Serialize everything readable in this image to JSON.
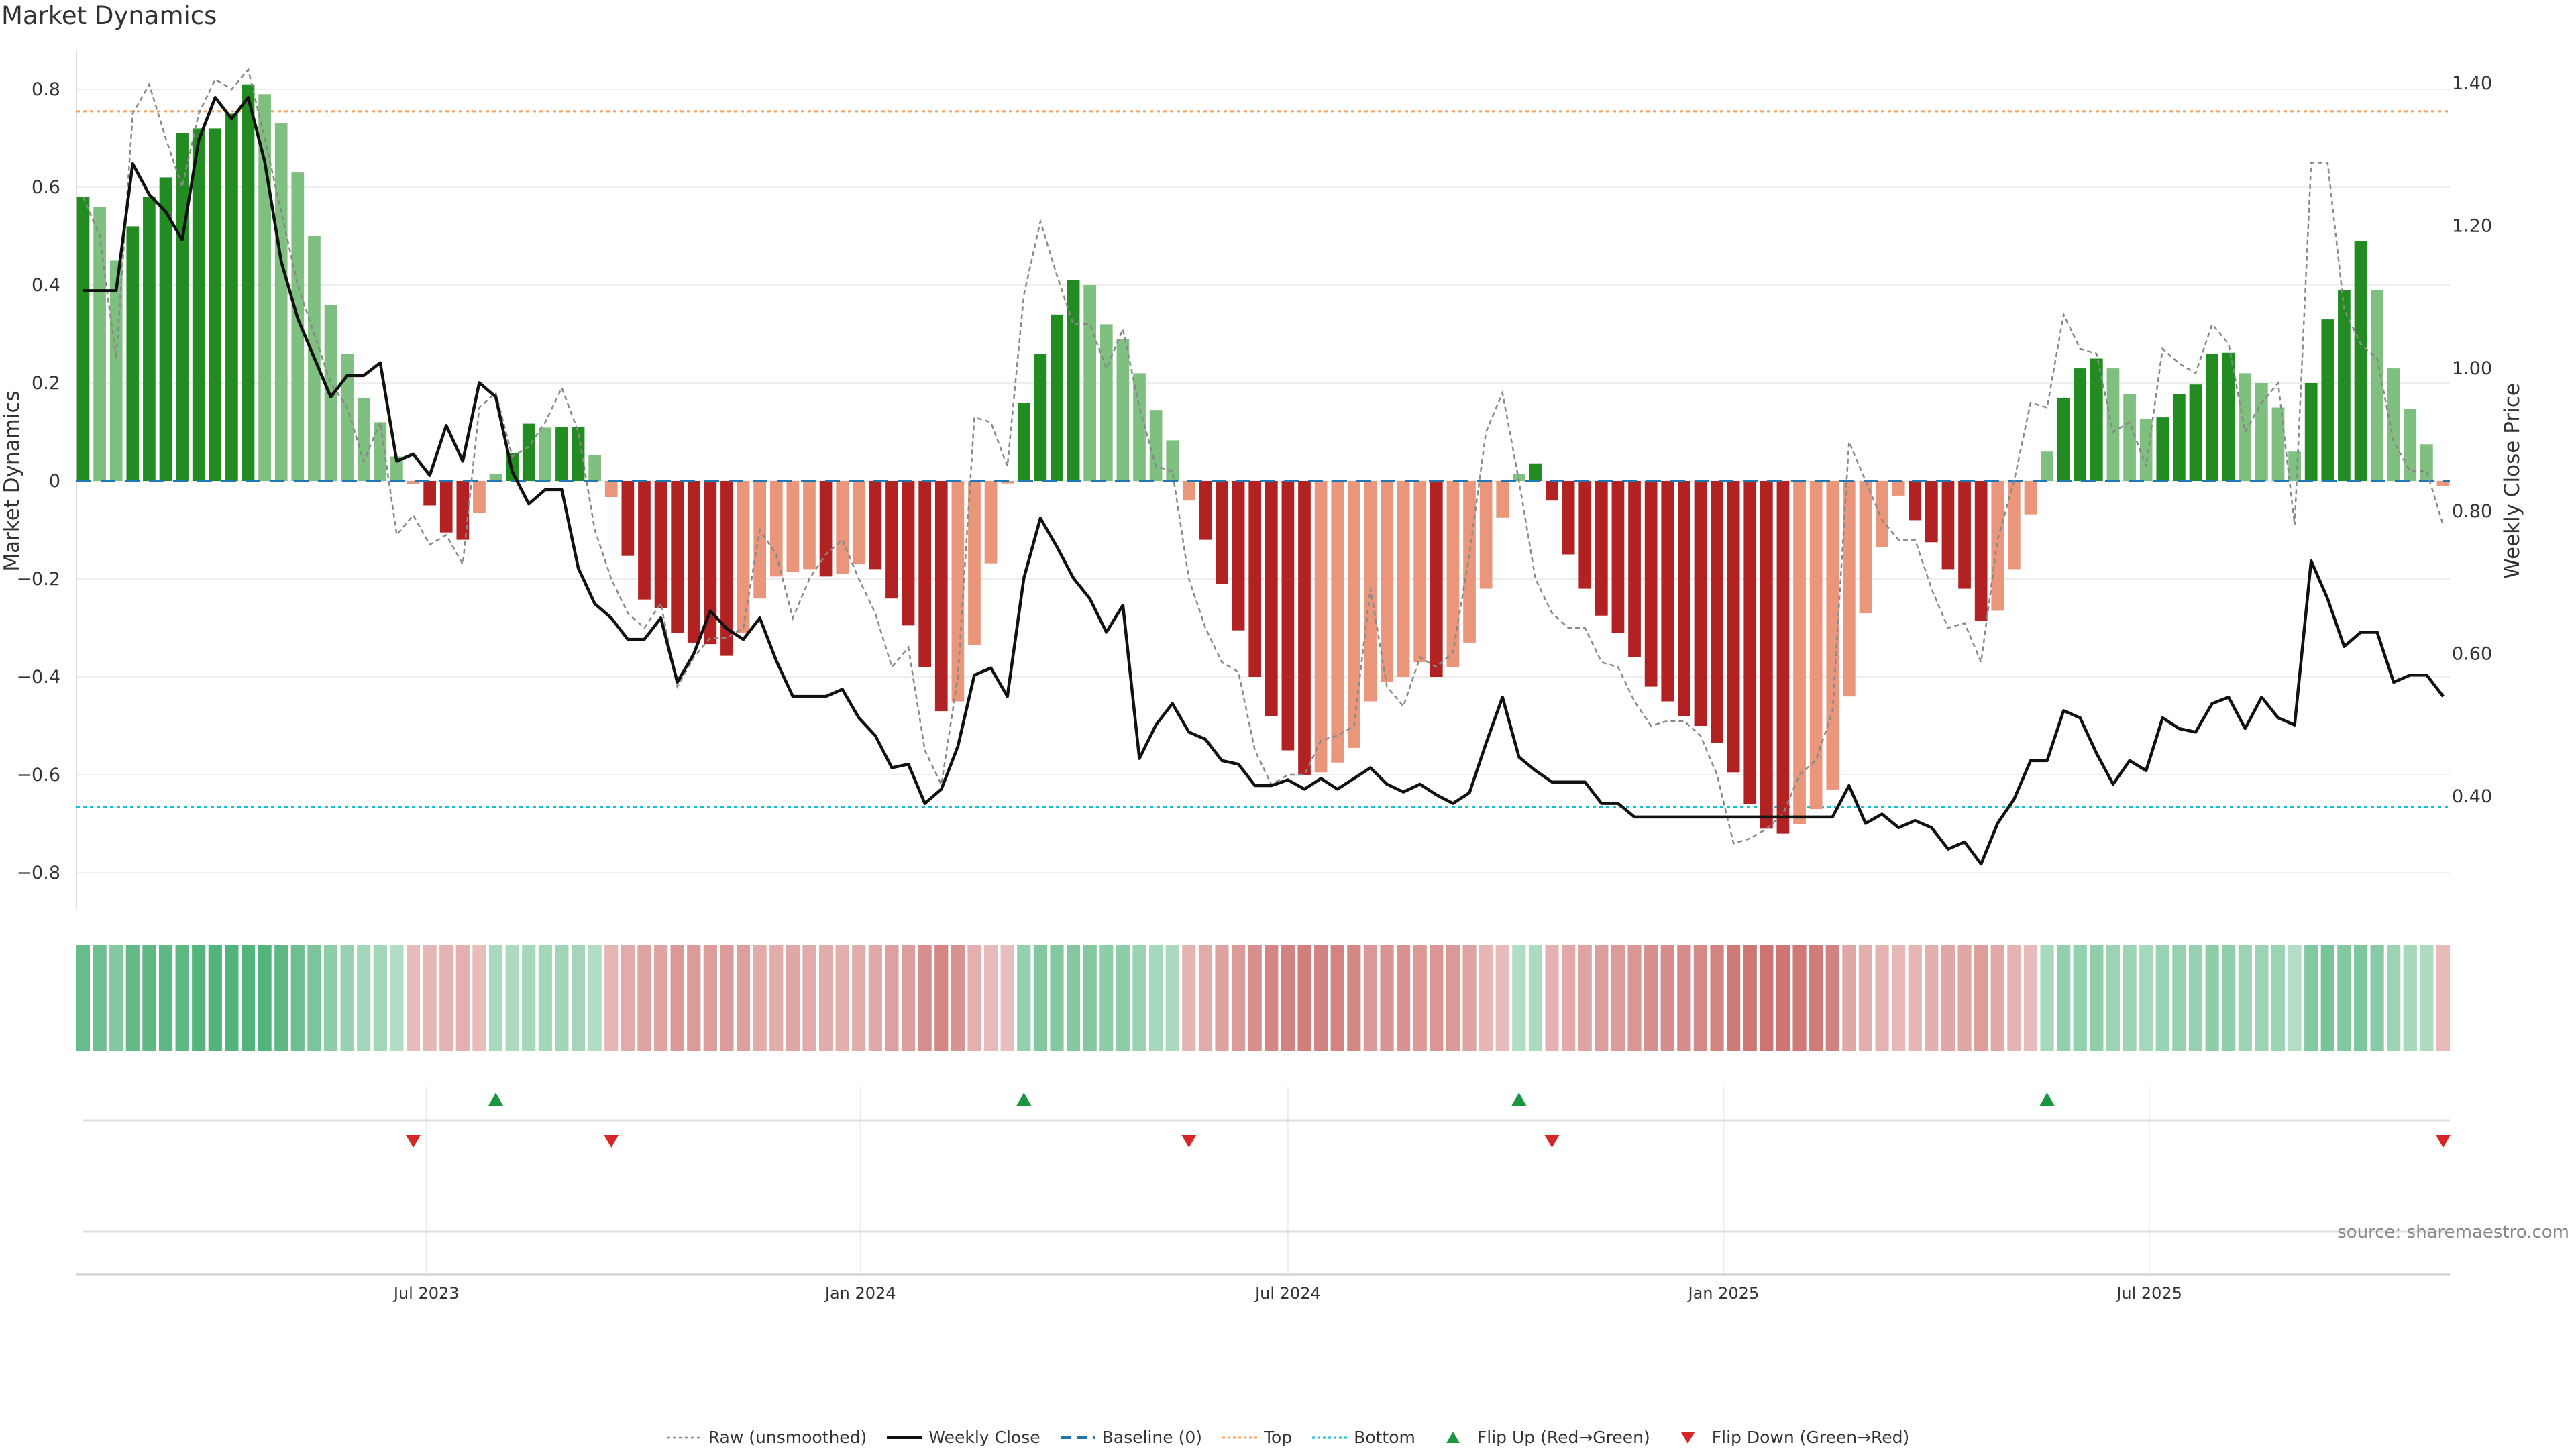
{
  "title": "Market Dynamics",
  "source": "source: sharemaestro.com",
  "colors": {
    "bar_up_strong": "#228b22",
    "bar_up_weak": "#7fbf7f",
    "bar_down_strong": "#b22222",
    "bar_down_weak": "#e9967a",
    "close": "#111111",
    "raw": "#888888",
    "baseline": "#1f77b4",
    "top": "#f4a460",
    "bottom": "#17becf",
    "flip_up": "#1a9641",
    "flip_down": "#d62728",
    "strip_green": "#2ca25f",
    "strip_red": "#c0504d"
  },
  "legend": [
    {
      "key": "raw",
      "label": "Raw (unsmoothed)"
    },
    {
      "key": "close",
      "label": "Weekly Close"
    },
    {
      "key": "baseline",
      "label": "Baseline (0)"
    },
    {
      "key": "top",
      "label": "Top"
    },
    {
      "key": "bottom",
      "label": "Bottom"
    },
    {
      "key": "flip_up",
      "label": "Flip Up (Red→Green)"
    },
    {
      "key": "flip_down",
      "label": "Flip Down (Green→Red)"
    }
  ],
  "chart_data": {
    "type": "bar",
    "title": "Market Dynamics",
    "ylabel": "Market Dynamics",
    "y2label": "Weekly Close Price",
    "ylim": [
      -0.87,
      0.87
    ],
    "y2lim": [
      0.27,
      1.45
    ],
    "yticks": [
      "0.8",
      "0.6",
      "0.4",
      "0.2",
      "0",
      "−0.2",
      "−0.4",
      "−0.6",
      "−0.8"
    ],
    "ytick_values": [
      0.8,
      0.6,
      0.4,
      0.2,
      0,
      -0.2,
      -0.4,
      -0.6,
      -0.8
    ],
    "y2ticks": [
      "1.40",
      "1.20",
      "1.00",
      "0.80",
      "0.60",
      "0.40"
    ],
    "y2tick_values": [
      1.4,
      1.2,
      1.0,
      0.8,
      0.6,
      0.4
    ],
    "x_ticks": [
      {
        "label": "Jul 2023",
        "week_index": 20.8
      },
      {
        "label": "Jan 2024",
        "week_index": 47.1
      },
      {
        "label": "Jul 2024",
        "week_index": 73.0
      },
      {
        "label": "Jan 2025",
        "week_index": 99.4
      },
      {
        "label": "Jul 2025",
        "week_index": 125.2
      }
    ],
    "top_level": 0.755,
    "bottom_level": -0.665,
    "baseline": 0,
    "dynamics": [
      0.58,
      0.56,
      0.45,
      0.52,
      0.58,
      0.62,
      0.71,
      0.72,
      0.72,
      0.75,
      0.81,
      0.79,
      0.73,
      0.63,
      0.5,
      0.36,
      0.26,
      0.17,
      0.12,
      0.05,
      -0.006,
      -0.05,
      -0.105,
      -0.12,
      -0.065,
      0.015,
      0.057,
      0.117,
      0.109,
      0.11,
      0.11,
      0.053,
      -0.033,
      -0.153,
      -0.242,
      -0.26,
      -0.31,
      -0.33,
      -0.333,
      -0.357,
      -0.31,
      -0.24,
      -0.195,
      -0.185,
      -0.18,
      -0.195,
      -0.19,
      -0.17,
      -0.18,
      -0.24,
      -0.295,
      -0.38,
      -0.47,
      -0.45,
      -0.335,
      -0.168,
      -0.005,
      0.16,
      0.26,
      0.34,
      0.41,
      0.4,
      0.32,
      0.29,
      0.22,
      0.145,
      0.083,
      -0.04,
      -0.12,
      -0.21,
      -0.305,
      -0.4,
      -0.48,
      -0.55,
      -0.6,
      -0.595,
      -0.575,
      -0.545,
      -0.45,
      -0.41,
      -0.4,
      -0.37,
      -0.4,
      -0.38,
      -0.33,
      -0.22,
      -0.075,
      0.015,
      0.036,
      -0.04,
      -0.15,
      -0.22,
      -0.275,
      -0.31,
      -0.36,
      -0.42,
      -0.45,
      -0.48,
      -0.5,
      -0.535,
      -0.595,
      -0.66,
      -0.71,
      -0.72,
      -0.7,
      -0.67,
      -0.63,
      -0.44,
      -0.27,
      -0.135,
      -0.03,
      -0.08,
      -0.125,
      -0.18,
      -0.22,
      -0.285,
      -0.265,
      -0.18,
      -0.068,
      0.06,
      0.17,
      0.23,
      0.25,
      0.23,
      0.178,
      0.126,
      0.13,
      0.178,
      0.197,
      0.26,
      0.262,
      0.22,
      0.2,
      0.15,
      0.06,
      0.2,
      0.33,
      0.39,
      0.49,
      0.39,
      0.23,
      0.147,
      0.075,
      -0.01
    ],
    "raw": [
      0.58,
      0.5,
      0.25,
      0.75,
      0.81,
      0.7,
      0.6,
      0.75,
      0.82,
      0.8,
      0.84,
      0.7,
      0.55,
      0.4,
      0.3,
      0.2,
      0.15,
      0.04,
      0.12,
      -0.11,
      -0.07,
      -0.13,
      -0.11,
      -0.17,
      0.15,
      0.18,
      0.05,
      0.07,
      0.12,
      0.19,
      0.1,
      -0.1,
      -0.2,
      -0.27,
      -0.3,
      -0.25,
      -0.42,
      -0.36,
      -0.32,
      -0.32,
      -0.3,
      -0.1,
      -0.15,
      -0.28,
      -0.2,
      -0.15,
      -0.12,
      -0.2,
      -0.27,
      -0.38,
      -0.34,
      -0.55,
      -0.62,
      -0.4,
      0.13,
      0.12,
      0.03,
      0.38,
      0.53,
      0.42,
      0.32,
      0.32,
      0.23,
      0.31,
      0.15,
      0.03,
      0.02,
      -0.2,
      -0.3,
      -0.37,
      -0.39,
      -0.55,
      -0.62,
      -0.6,
      -0.6,
      -0.53,
      -0.52,
      -0.5,
      -0.22,
      -0.42,
      -0.46,
      -0.36,
      -0.38,
      -0.35,
      -0.15,
      0.1,
      0.18,
      0.0,
      -0.2,
      -0.27,
      -0.3,
      -0.3,
      -0.37,
      -0.38,
      -0.45,
      -0.5,
      -0.49,
      -0.49,
      -0.52,
      -0.6,
      -0.74,
      -0.73,
      -0.71,
      -0.68,
      -0.6,
      -0.57,
      -0.47,
      0.08,
      0.0,
      -0.08,
      -0.12,
      -0.12,
      -0.22,
      -0.3,
      -0.29,
      -0.37,
      -0.12,
      0.0,
      0.16,
      0.15,
      0.34,
      0.27,
      0.26,
      0.1,
      0.12,
      0.03,
      0.27,
      0.24,
      0.22,
      0.32,
      0.28,
      0.1,
      0.16,
      0.2,
      -0.09,
      0.65,
      0.65,
      0.35,
      0.28,
      0.25,
      0.08,
      0.02,
      0.02,
      -0.09
    ],
    "weekly_close": [
      1.109,
      1.109,
      1.109,
      1.287,
      1.244,
      1.22,
      1.18,
      1.32,
      1.38,
      1.35,
      1.38,
      1.29,
      1.15,
      1.07,
      1.015,
      0.96,
      0.99,
      0.99,
      1.008,
      0.87,
      0.88,
      0.85,
      0.92,
      0.87,
      0.98,
      0.96,
      0.855,
      0.81,
      0.83,
      0.83,
      0.72,
      0.67,
      0.65,
      0.62,
      0.62,
      0.65,
      0.56,
      0.6,
      0.66,
      0.635,
      0.62,
      0.65,
      0.59,
      0.54,
      0.54,
      0.54,
      0.55,
      0.51,
      0.485,
      0.44,
      0.445,
      0.39,
      0.41,
      0.47,
      0.57,
      0.58,
      0.54,
      0.706,
      0.79,
      0.75,
      0.706,
      0.677,
      0.63,
      0.668,
      0.453,
      0.5,
      0.53,
      0.49,
      0.48,
      0.45,
      0.445,
      0.415,
      0.415,
      0.423,
      0.41,
      0.425,
      0.41,
      0.425,
      0.44,
      0.417,
      0.406,
      0.417,
      0.402,
      0.39,
      0.405,
      0.474,
      0.539,
      0.455,
      0.436,
      0.42,
      0.42,
      0.42,
      0.39,
      0.39,
      0.371,
      0.371,
      0.371,
      0.371,
      0.371,
      0.371,
      0.371,
      0.371,
      0.371,
      0.371,
      0.371,
      0.371,
      0.371,
      0.415,
      0.362,
      0.375,
      0.356,
      0.366,
      0.356,
      0.326,
      0.336,
      0.305,
      0.362,
      0.396,
      0.45,
      0.45,
      0.52,
      0.51,
      0.46,
      0.417,
      0.45,
      0.436,
      0.51,
      0.495,
      0.49,
      0.53,
      0.539,
      0.495,
      0.539,
      0.51,
      0.5,
      0.73,
      0.677,
      0.61,
      0.63,
      0.63,
      0.56,
      0.57,
      0.57,
      0.54
    ]
  }
}
